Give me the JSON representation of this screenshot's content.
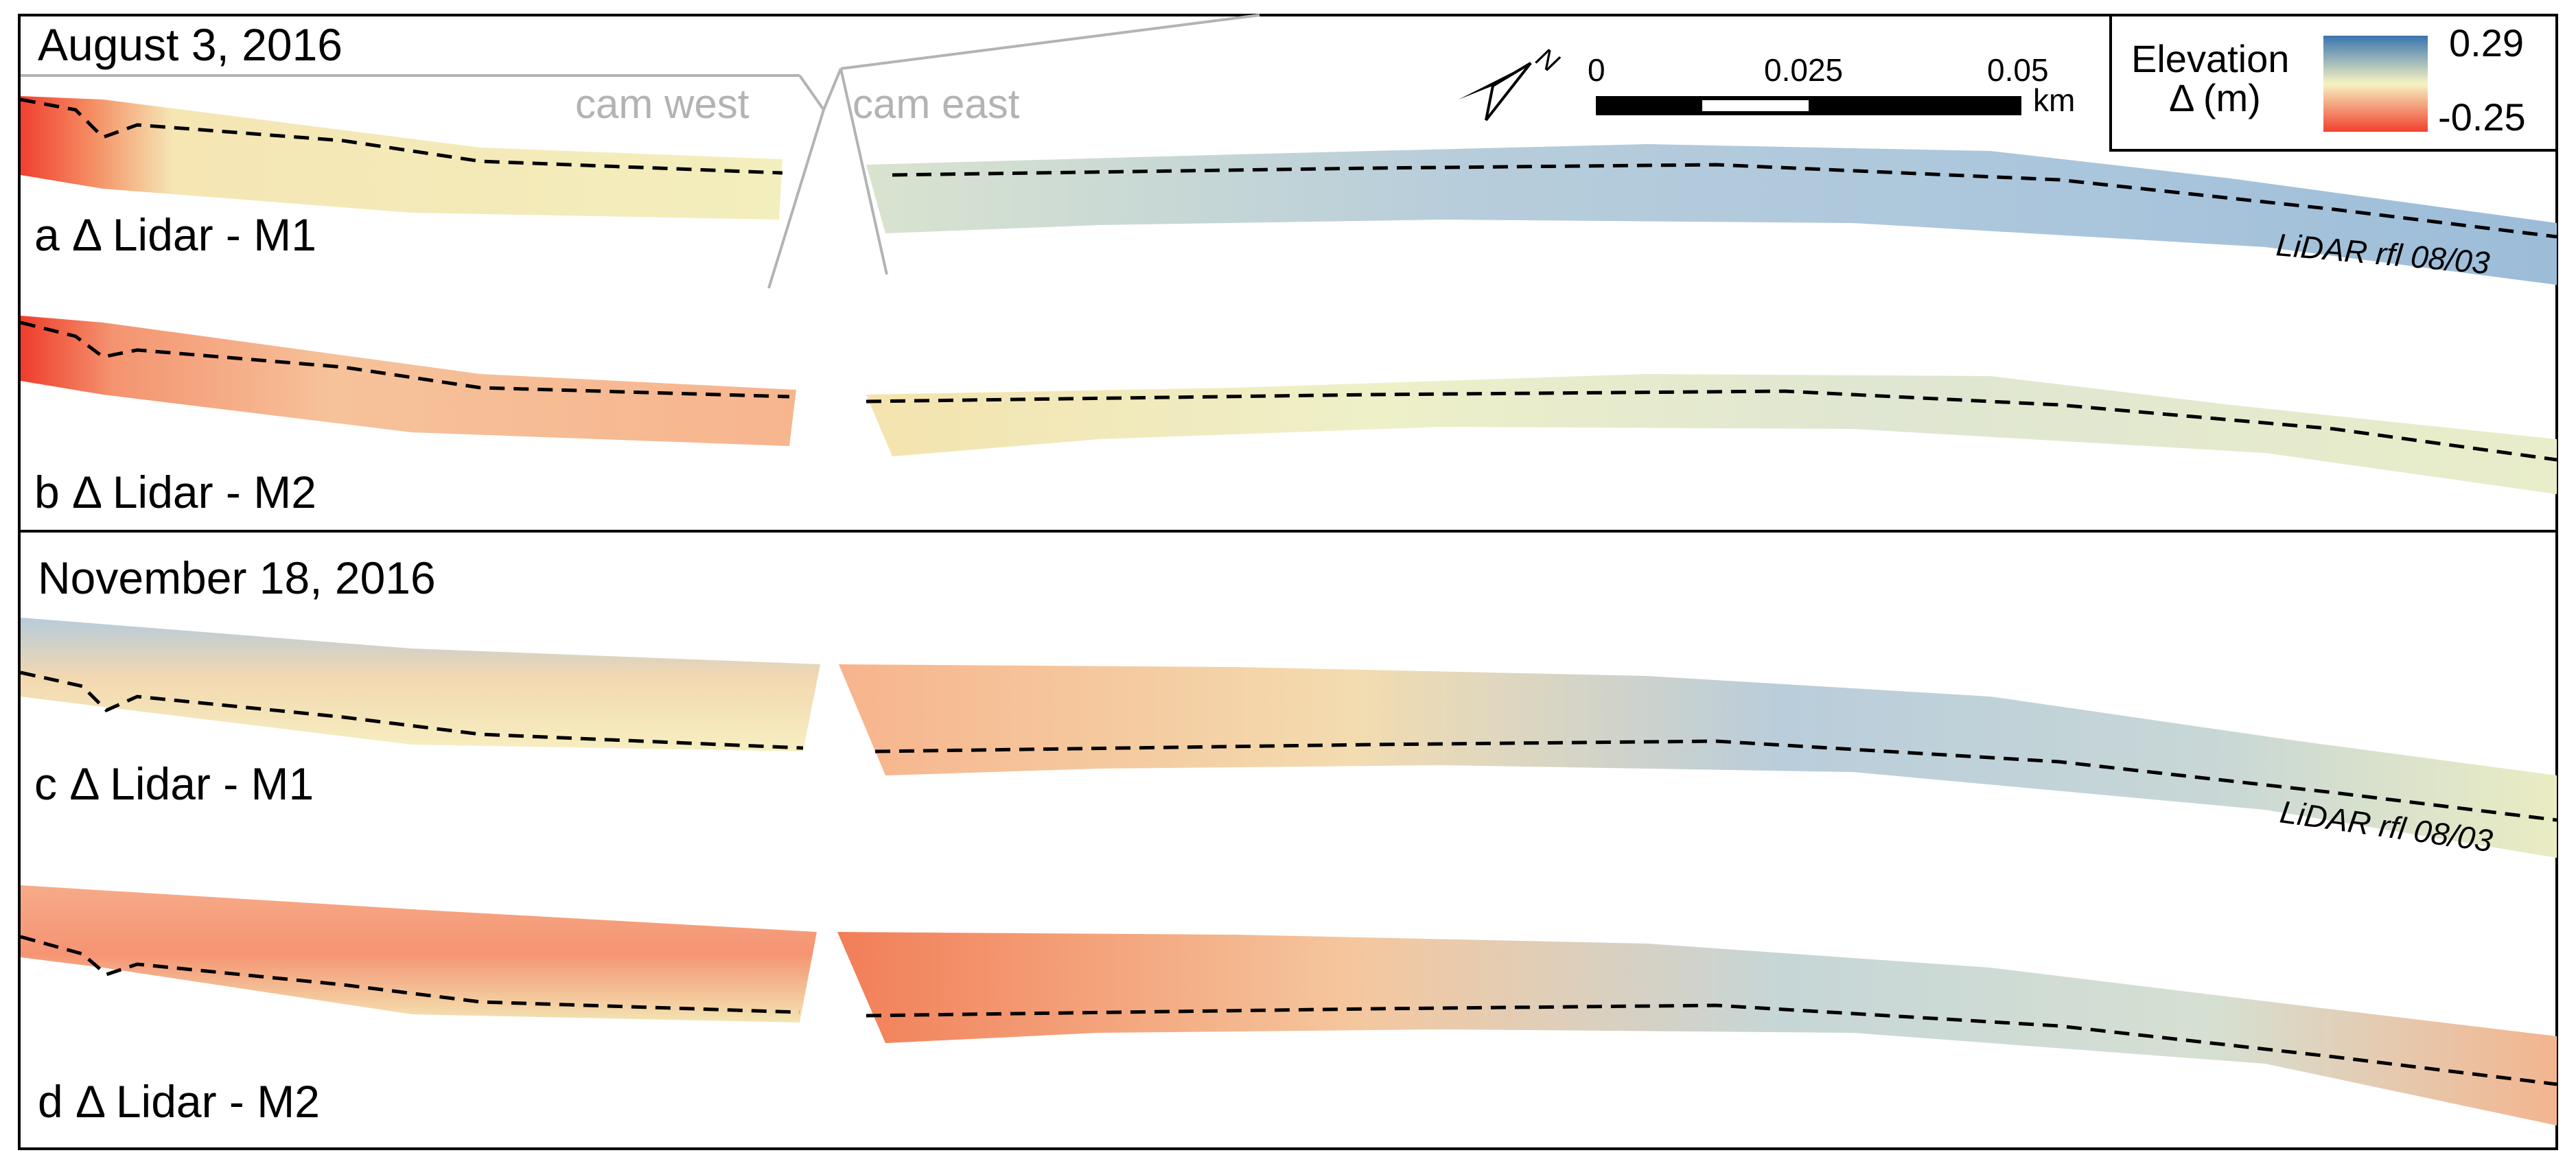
{
  "panels": [
    {
      "id": "a",
      "date_heading": "August 3, 2016",
      "label": "a Δ Lidar - M1",
      "rfl_label": "LiDAR rfl 08/03"
    },
    {
      "id": "b",
      "date_heading": "",
      "label": "b Δ Lidar - M2",
      "rfl_label": ""
    },
    {
      "id": "c",
      "date_heading": "November 18, 2016",
      "label": "c Δ Lidar - M1",
      "rfl_label": "LiDAR rfl 08/03"
    },
    {
      "id": "d",
      "date_heading": "",
      "label": "d Δ Lidar - M2",
      "rfl_label": ""
    }
  ],
  "camera_views": {
    "west": "cam west",
    "east": "cam east"
  },
  "north_arrow": {
    "label": "N"
  },
  "scale_bar": {
    "ticks": [
      "0",
      "0.025",
      "0.05"
    ],
    "unit": "km"
  },
  "legend": {
    "title_line1": "Elevation",
    "title_line2": "Δ (m)",
    "max_label": "0.29",
    "min_label": "-0.25",
    "max_value": 0.29,
    "min_value": -0.25,
    "colors": {
      "high": "#3a74b0",
      "mid": "#f6f3c2",
      "low": "#f2402e"
    }
  }
}
